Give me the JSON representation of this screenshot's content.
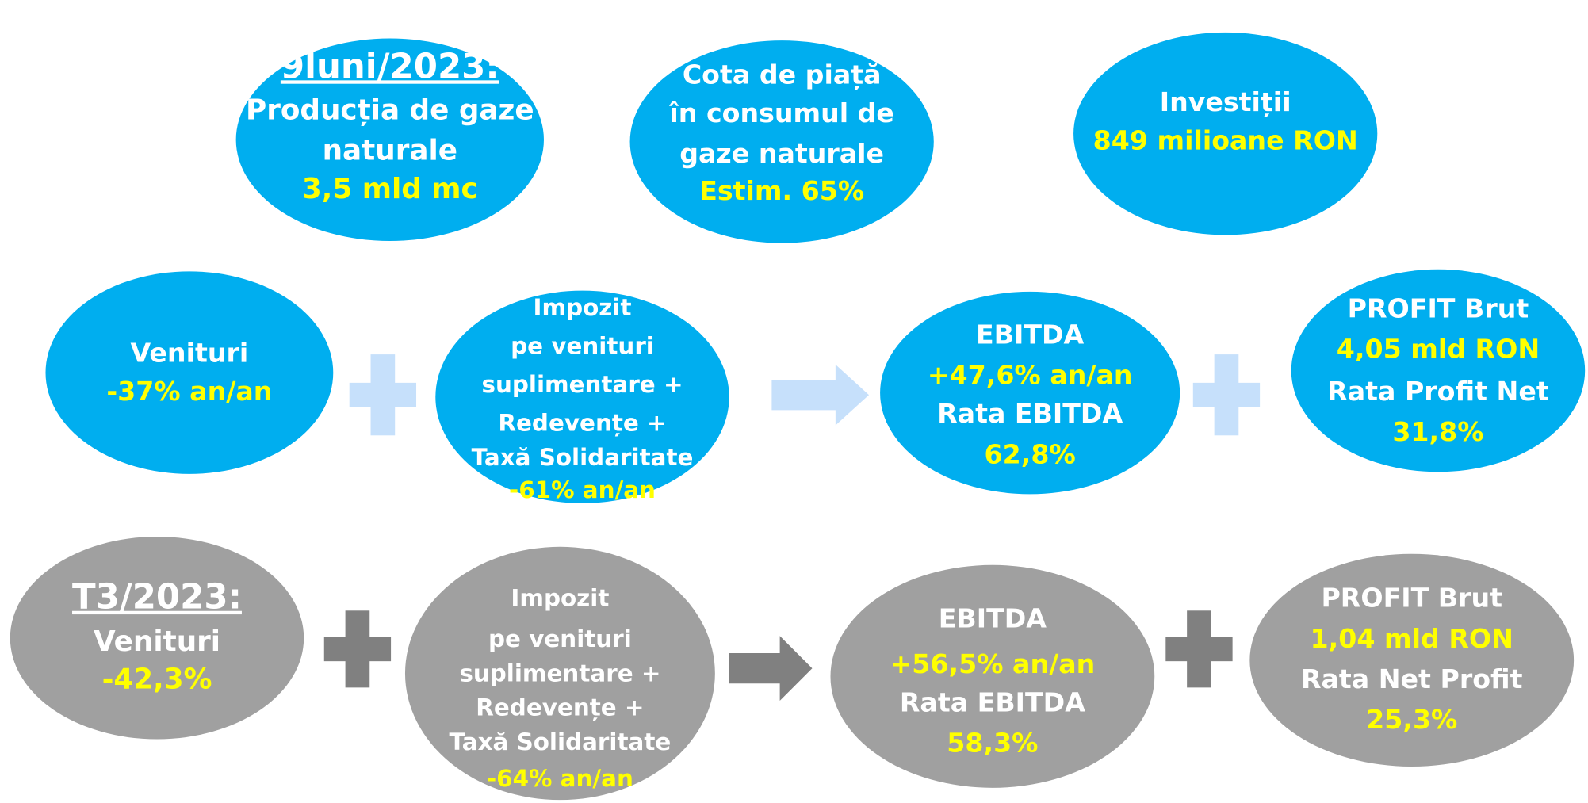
{
  "nodes": [
    {
      "fill": "#00aeef",
      "lines": [
        {
          "text": "9luni/2023:",
          "color": "#ffffff"
        },
        {
          "text": "Producția de gaze",
          "color": "#ffffff"
        },
        {
          "text": "naturale",
          "color": "#ffffff"
        },
        {
          "text": "3,5 mld mc",
          "color": "#ffff00"
        }
      ]
    },
    {
      "fill": "#00aeef",
      "lines": [
        {
          "text": "Cota de piață",
          "color": "#ffffff"
        },
        {
          "text": "în consumul de",
          "color": "#ffffff"
        },
        {
          "text": "gaze naturale",
          "color": "#ffffff"
        },
        {
          "text": "Estim. 65%",
          "color": "#ffff00"
        }
      ]
    },
    {
      "fill": "#00aeef",
      "lines": [
        {
          "text": "Investiții",
          "color": "#ffffff"
        },
        {
          "text": "849 milioane RON",
          "color": "#ffff00"
        }
      ]
    },
    {
      "fill": "#00aeef",
      "lines": [
        {
          "text": "Venituri",
          "color": "#ffffff"
        },
        {
          "text": "-37% an/an",
          "color": "#ffff00"
        }
      ]
    },
    {
      "fill": "#00aeef",
      "lines": [
        {
          "text": "Impozit",
          "color": "#ffffff"
        },
        {
          "text": "pe venituri",
          "color": "#ffffff"
        },
        {
          "text": "suplimentare +",
          "color": "#ffffff"
        },
        {
          "text": "Redevențe +",
          "color": "#ffffff"
        },
        {
          "text": "Taxă Solidaritate",
          "color": "#ffffff"
        },
        {
          "text": "-61% an/an",
          "color": "#ffff00"
        }
      ]
    },
    {
      "fill": "#00aeef",
      "lines": [
        {
          "text": "EBITDA",
          "color": "#ffffff"
        },
        {
          "text": "+47,6% an/an",
          "color": "#ffff00"
        },
        {
          "text": "Rata EBITDA",
          "color": "#ffffff"
        },
        {
          "text": "62,8%",
          "color": "#ffff00"
        }
      ]
    },
    {
      "fill": "#00aeef",
      "lines": [
        {
          "text": "PROFIT Brut",
          "color": "#ffffff"
        },
        {
          "text": "4,05 mld RON",
          "color": "#ffff00"
        },
        {
          "text": "Rata Profit Net",
          "color": "#ffffff"
        },
        {
          "text": "31,8%",
          "color": "#ffff00"
        }
      ]
    },
    {
      "fill": "#a0a0a0",
      "lines": [
        {
          "text": "T3/2023:",
          "color": "#ffffff"
        },
        {
          "text": "Venituri",
          "color": "#ffffff"
        },
        {
          "text": "-42,3%",
          "color": "#ffff00"
        }
      ]
    },
    {
      "fill": "#a0a0a0",
      "lines": [
        {
          "text": "Impozit",
          "color": "#ffffff"
        },
        {
          "text": "pe venituri",
          "color": "#ffffff"
        },
        {
          "text": "suplimentare +",
          "color": "#ffffff"
        },
        {
          "text": "Redevențe +",
          "color": "#ffffff"
        },
        {
          "text": "Taxă Solidaritate",
          "color": "#ffffff"
        },
        {
          "text": "-64% an/an",
          "color": "#ffff00"
        }
      ]
    },
    {
      "fill": "#a0a0a0",
      "lines": [
        {
          "text": "EBITDA",
          "color": "#ffffff"
        },
        {
          "text": "+56,5% an/an",
          "color": "#ffff00"
        },
        {
          "text": "Rata EBITDA",
          "color": "#ffffff"
        },
        {
          "text": "58,3%",
          "color": "#ffff00"
        }
      ]
    },
    {
      "fill": "#a0a0a0",
      "lines": [
        {
          "text": "PROFIT Brut",
          "color": "#ffffff"
        },
        {
          "text": "1,04 mld RON",
          "color": "#ffff00"
        },
        {
          "text": "Rata Net Profit",
          "color": "#ffffff"
        },
        {
          "text": "25,3%",
          "color": "#ffff00"
        }
      ]
    }
  ]
}
